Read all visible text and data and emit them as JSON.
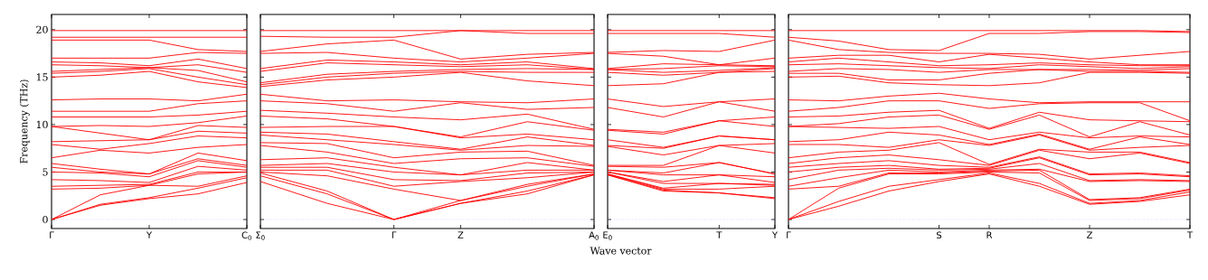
{
  "chart_data": [
    {
      "type": "line",
      "ylabel": "Frequency (THz)",
      "color": "#ff0000",
      "ylim": [
        -0.95,
        21.6
      ],
      "yticks": [
        0,
        5,
        10,
        15,
        20
      ],
      "categories": [
        "Γ",
        null,
        "Y",
        null,
        "C$_{0}$"
      ],
      "ref_lines": [
        {
          "axis": "y",
          "value": 0,
          "color": "#7f7fff",
          "line_style": "dotted"
        }
      ],
      "series": [
        {
          "values": [
            0,
            1.5,
            2.2,
            2.7,
            3.9
          ]
        },
        {
          "values": [
            0,
            1.6,
            2.3,
            3.3,
            4.4
          ]
        },
        {
          "values": [
            0,
            2.6,
            3.6,
            3.5,
            4.6
          ]
        },
        {
          "values": [
            3.2,
            3.3,
            3.6,
            4.8,
            5.0
          ]
        },
        {
          "values": [
            3.5,
            3.6,
            3.7,
            5.0,
            5.0
          ]
        },
        {
          "values": [
            4.2,
            4.1,
            3.9,
            5.6,
            5.2
          ]
        },
        {
          "values": [
            5.0,
            4.9,
            4.5,
            6.2,
            5.5
          ]
        },
        {
          "values": [
            5.5,
            5.0,
            4.8,
            6.4,
            5.7
          ]
        },
        {
          "values": [
            5.9,
            5.3,
            4.8,
            7.0,
            6.2
          ]
        },
        {
          "values": [
            6.5,
            7.3,
            7.0,
            7.6,
            7.9
          ]
        },
        {
          "values": [
            7.9,
            7.4,
            8.0,
            8.8,
            8.6
          ]
        },
        {
          "values": [
            8.2,
            8.3,
            8.4,
            9.3,
            9.1
          ]
        },
        {
          "values": [
            9.8,
            9.1,
            8.4,
            9.9,
            9.7
          ]
        },
        {
          "values": [
            9.8,
            9.9,
            9.8,
            10.2,
            10.9
          ]
        },
        {
          "values": [
            10.8,
            10.8,
            10.8,
            11.0,
            11.4
          ]
        },
        {
          "values": [
            11.4,
            11.4,
            11.4,
            12.2,
            12.5
          ]
        },
        {
          "values": [
            12.6,
            12.7,
            12.7,
            12.5,
            13.2
          ]
        },
        {
          "values": [
            15.0,
            15.2,
            15.6,
            14.5,
            13.9
          ]
        },
        {
          "values": [
            15.4,
            15.6,
            15.9,
            15.0,
            14.2
          ]
        },
        {
          "values": [
            15.6,
            15.8,
            16.0,
            15.7,
            14.5
          ]
        },
        {
          "values": [
            16.3,
            16.2,
            16.0,
            16.3,
            15.5
          ]
        },
        {
          "values": [
            16.6,
            16.5,
            16.2,
            16.9,
            15.9
          ]
        },
        {
          "values": [
            17.0,
            17.0,
            17.0,
            17.6,
            17.5
          ]
        },
        {
          "values": [
            18.9,
            18.9,
            18.9,
            17.9,
            17.7
          ]
        },
        {
          "values": [
            19.2,
            19.2,
            19.2,
            19.2,
            19.2
          ]
        },
        {
          "values": [
            19.9,
            19.9,
            19.9,
            19.9,
            19.9
          ]
        }
      ]
    },
    {
      "type": "line",
      "color": "#ff0000",
      "tick_labels": "x",
      "ylim": [
        -0.95,
        21.6
      ],
      "yticks": [
        0,
        5,
        10,
        15,
        20
      ],
      "categories": [
        "Σ$_{0}$",
        null,
        "Γ",
        "Z",
        null,
        "A$_{0}$"
      ],
      "ref_lines": [
        {
          "axis": "y",
          "value": 0,
          "color": "#7f7fff",
          "line_style": "dotted"
        }
      ],
      "series": [
        {
          "values": [
            4.0,
            1.7,
            0,
            1.7,
            2.7,
            4.7
          ]
        },
        {
          "values": [
            4.6,
            2.7,
            0,
            1.7,
            3.0,
            4.7
          ]
        },
        {
          "values": [
            4.9,
            3.0,
            0,
            2.0,
            3.5,
            4.8
          ]
        },
        {
          "values": [
            5.0,
            4.6,
            3.2,
            2.0,
            3.7,
            4.8
          ]
        },
        {
          "values": [
            5.2,
            5.2,
            3.5,
            4.0,
            4.4,
            5.0
          ]
        },
        {
          "values": [
            5.5,
            5.5,
            4.2,
            4.1,
            4.9,
            5.0
          ]
        },
        {
          "values": [
            5.7,
            5.9,
            5.0,
            4.7,
            5.2,
            5.2
          ]
        },
        {
          "values": [
            6.3,
            6.5,
            5.5,
            4.7,
            6.0,
            5.2
          ]
        },
        {
          "values": [
            7.8,
            7.1,
            5.9,
            6.4,
            6.5,
            5.6
          ]
        },
        {
          "values": [
            8.1,
            8.0,
            6.5,
            7.1,
            7.2,
            5.7
          ]
        },
        {
          "values": [
            8.9,
            8.4,
            7.9,
            7.3,
            7.8,
            7.7
          ]
        },
        {
          "values": [
            9.2,
            9.0,
            8.2,
            7.4,
            8.7,
            7.8
          ]
        },
        {
          "values": [
            9.7,
            9.8,
            9.8,
            8.6,
            9.0,
            8.4
          ]
        },
        {
          "values": [
            10.9,
            10.6,
            9.8,
            8.7,
            10.3,
            9.4
          ]
        },
        {
          "values": [
            11.5,
            11.2,
            10.8,
            10.5,
            11.1,
            9.5
          ]
        },
        {
          "values": [
            12.5,
            12.2,
            11.4,
            12.3,
            11.6,
            11.8
          ]
        },
        {
          "values": [
            13.2,
            12.5,
            12.6,
            12.4,
            12.3,
            12.7
          ]
        },
        {
          "values": [
            14.0,
            14.7,
            15.0,
            15.5,
            14.6,
            14.1
          ]
        },
        {
          "values": [
            14.2,
            15.0,
            15.4,
            15.6,
            15.5,
            15.5
          ]
        },
        {
          "values": [
            14.4,
            15.3,
            15.6,
            15.8,
            15.9,
            15.8
          ]
        },
        {
          "values": [
            15.6,
            16.5,
            16.3,
            16.1,
            16.3,
            15.8
          ]
        },
        {
          "values": [
            15.9,
            16.8,
            16.6,
            16.3,
            16.6,
            15.9
          ]
        },
        {
          "values": [
            17.5,
            17.6,
            17.0,
            16.6,
            17.0,
            17.5
          ]
        },
        {
          "values": [
            17.7,
            18.5,
            18.9,
            16.9,
            17.4,
            17.6
          ]
        },
        {
          "values": [
            19.3,
            19.2,
            19.2,
            19.9,
            19.6,
            19.6
          ]
        },
        {
          "values": [
            19.9,
            19.9,
            19.9,
            19.9,
            19.9,
            19.9
          ]
        }
      ]
    },
    {
      "type": "line",
      "color": "#ff0000",
      "tick_labels": "x",
      "xlabel": "Wave vector",
      "ylim": [
        -0.95,
        21.6
      ],
      "yticks": [
        0,
        5,
        10,
        15,
        20
      ],
      "categories": [
        "E$_{0}$",
        null,
        "T",
        "Y"
      ],
      "ref_lines": [
        {
          "axis": "y",
          "value": 0,
          "color": "#7f7fff",
          "line_style": "dotted"
        }
      ],
      "series": [
        {
          "values": [
            4.7,
            3.0,
            2.8,
            2.2
          ]
        },
        {
          "values": [
            4.7,
            3.1,
            2.8,
            2.3
          ]
        },
        {
          "values": [
            4.8,
            3.2,
            3.2,
            3.5
          ]
        },
        {
          "values": [
            4.8,
            3.3,
            3.8,
            3.6
          ]
        },
        {
          "values": [
            5.0,
            3.8,
            3.8,
            3.7
          ]
        },
        {
          "values": [
            5.0,
            4.0,
            4.7,
            3.9
          ]
        },
        {
          "values": [
            5.2,
            4.7,
            4.7,
            4.5
          ]
        },
        {
          "values": [
            5.2,
            4.9,
            6.0,
            4.8
          ]
        },
        {
          "values": [
            5.6,
            5.5,
            6.0,
            4.8
          ]
        },
        {
          "values": [
            5.7,
            5.7,
            7.8,
            7.0
          ]
        },
        {
          "values": [
            7.7,
            6.8,
            7.8,
            8.0
          ]
        },
        {
          "values": [
            7.8,
            7.5,
            8.8,
            8.4
          ]
        },
        {
          "values": [
            8.4,
            7.6,
            8.8,
            8.4
          ]
        },
        {
          "values": [
            9.4,
            9.0,
            10.4,
            9.8
          ]
        },
        {
          "values": [
            9.5,
            9.2,
            10.4,
            10.8
          ]
        },
        {
          "values": [
            11.8,
            10.8,
            12.4,
            11.4
          ]
        },
        {
          "values": [
            12.7,
            11.9,
            12.4,
            12.7
          ]
        },
        {
          "values": [
            14.1,
            14.3,
            15.5,
            15.6
          ]
        },
        {
          "values": [
            15.5,
            15.2,
            15.5,
            15.9
          ]
        },
        {
          "values": [
            15.8,
            15.5,
            15.7,
            16.0
          ]
        },
        {
          "values": [
            15.8,
            15.9,
            16.2,
            16.1
          ]
        },
        {
          "values": [
            15.9,
            16.4,
            16.3,
            16.2
          ]
        },
        {
          "values": [
            17.5,
            17.2,
            16.3,
            17.0
          ]
        },
        {
          "values": [
            17.6,
            17.8,
            17.7,
            18.9
          ]
        },
        {
          "values": [
            19.6,
            19.6,
            19.6,
            19.2
          ]
        },
        {
          "values": [
            19.9,
            19.9,
            19.9,
            19.9
          ]
        }
      ]
    },
    {
      "type": "line",
      "color": "#ff0000",
      "tick_labels": "x",
      "ylim": [
        -0.95,
        21.6
      ],
      "yticks": [
        0,
        5,
        10,
        15,
        20
      ],
      "categories": [
        "Γ",
        null,
        null,
        "S",
        "R",
        null,
        "Z",
        null,
        "T"
      ],
      "ref_lines": [
        {
          "axis": "y",
          "value": 0,
          "color": "#7f7fff",
          "line_style": "dotted"
        }
      ],
      "series": [
        {
          "values": [
            0,
            1.4,
            3.0,
            4.0,
            4.8,
            3.5,
            1.6,
            1.9,
            2.6
          ]
        },
        {
          "values": [
            0,
            1.9,
            3.5,
            4.2,
            4.9,
            3.8,
            1.7,
            2.0,
            2.9
          ]
        },
        {
          "values": [
            0,
            3.3,
            4.8,
            4.8,
            5.0,
            4.9,
            2.0,
            2.2,
            3.1
          ]
        },
        {
          "values": [
            3.2,
            3.5,
            4.9,
            4.9,
            5.1,
            5.2,
            2.1,
            2.3,
            3.2
          ]
        },
        {
          "values": [
            3.5,
            4.4,
            5.2,
            5.0,
            5.2,
            5.3,
            4.0,
            4.1,
            4.0
          ]
        },
        {
          "values": [
            4.2,
            5.2,
            5.4,
            5.2,
            5.3,
            5.9,
            4.1,
            4.2,
            4.1
          ]
        },
        {
          "values": [
            5.0,
            5.5,
            5.7,
            5.3,
            5.4,
            6.5,
            4.7,
            4.8,
            4.5
          ]
        },
        {
          "values": [
            5.5,
            5.9,
            6.2,
            5.7,
            5.5,
            6.6,
            4.8,
            4.9,
            4.6
          ]
        },
        {
          "values": [
            5.9,
            6.5,
            6.8,
            6.3,
            5.7,
            7.3,
            6.4,
            7.0,
            5.9
          ]
        },
        {
          "values": [
            6.5,
            7.1,
            7.3,
            8.1,
            5.8,
            7.4,
            7.1,
            7.1,
            6.0
          ]
        },
        {
          "values": [
            7.9,
            7.9,
            7.6,
            8.4,
            7.8,
            8.9,
            7.3,
            7.6,
            7.8
          ]
        },
        {
          "values": [
            8.2,
            8.4,
            9.2,
            8.9,
            7.9,
            9.0,
            7.4,
            8.7,
            7.9
          ]
        },
        {
          "values": [
            9.8,
            9.7,
            9.6,
            9.8,
            8.4,
            9.2,
            8.6,
            8.8,
            8.7
          ]
        },
        {
          "values": [
            9.8,
            10.1,
            10.8,
            11.0,
            9.5,
            11.0,
            8.7,
            10.3,
            8.9
          ]
        },
        {
          "values": [
            10.8,
            10.9,
            11.3,
            11.5,
            9.6,
            11.3,
            10.5,
            10.4,
            10.3
          ]
        },
        {
          "values": [
            11.4,
            11.8,
            12.5,
            12.5,
            11.7,
            12.2,
            12.3,
            12.3,
            10.4
          ]
        },
        {
          "values": [
            12.6,
            12.5,
            13.0,
            13.3,
            12.7,
            12.3,
            12.4,
            12.4,
            12.4
          ]
        },
        {
          "values": [
            15.0,
            15.1,
            14.4,
            14.2,
            14.1,
            14.4,
            15.5,
            15.5,
            15.4
          ]
        },
        {
          "values": [
            15.4,
            15.4,
            14.7,
            14.7,
            15.4,
            15.8,
            15.6,
            15.6,
            15.5
          ]
        },
        {
          "values": [
            15.6,
            15.9,
            15.8,
            15.5,
            15.8,
            15.8,
            15.8,
            15.7,
            15.9
          ]
        },
        {
          "values": [
            16.3,
            16.4,
            16.2,
            16.0,
            15.9,
            16.3,
            16.1,
            15.9,
            16.1
          ]
        },
        {
          "values": [
            16.6,
            17.0,
            16.6,
            16.2,
            16.3,
            16.5,
            16.3,
            16.2,
            16.2
          ]
        },
        {
          "values": [
            17.0,
            17.3,
            17.3,
            16.6,
            17.4,
            17.0,
            16.6,
            16.3,
            16.3
          ]
        },
        {
          "values": [
            18.9,
            17.9,
            17.6,
            17.5,
            17.5,
            17.4,
            16.9,
            17.3,
            17.7
          ]
        },
        {
          "values": [
            19.2,
            18.8,
            17.9,
            17.8,
            19.6,
            19.6,
            19.8,
            19.8,
            19.7
          ]
        },
        {
          "values": [
            19.9,
            19.9,
            19.9,
            19.9,
            19.9,
            19.9,
            19.9,
            19.9,
            19.8
          ]
        }
      ]
    }
  ]
}
